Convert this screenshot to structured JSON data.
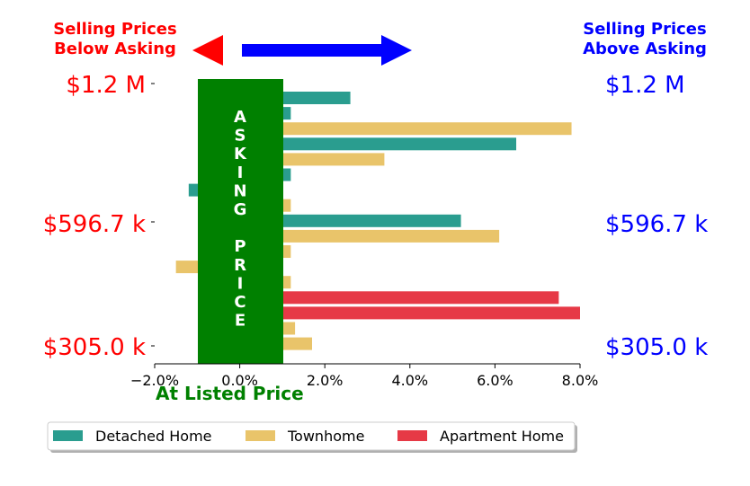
{
  "header": {
    "left_line1": "Selling Prices",
    "left_line2": "Below Asking",
    "right_line1": "Selling Prices",
    "right_line2": "Above Asking",
    "left_color": "#ff0000",
    "right_color": "#0000ff"
  },
  "banner": {
    "text": "ASKING PRICE",
    "color": "#008000"
  },
  "listed_label": {
    "text": "At Listed Price",
    "color": "#008000"
  },
  "chart_data": {
    "type": "bar",
    "orientation": "horizontal",
    "xlim": [
      -2.0,
      8.0
    ],
    "x_ticks": [
      -2.0,
      0.0,
      2.0,
      4.0,
      6.0,
      8.0
    ],
    "x_tick_labels": [
      "−2.0%",
      "0.0%",
      "2.0%",
      "4.0%",
      "6.0%",
      "8.0%"
    ],
    "y_labels_left": [
      "$1.2 M",
      "$596.7 k",
      "$305.0 k"
    ],
    "y_labels_right": [
      "$1.2 M",
      "$596.7 k",
      "$305.0 k"
    ],
    "series": [
      {
        "name": "Detached Home",
        "color": "#2a9d8f"
      },
      {
        "name": "Townhome",
        "color": "#e9c46a"
      },
      {
        "name": "Apartment Home",
        "color": "#e63946"
      }
    ],
    "bars": [
      {
        "series": 0,
        "value": 2.6
      },
      {
        "series": 0,
        "value": 1.2
      },
      {
        "series": 1,
        "value": 7.8
      },
      {
        "series": 0,
        "value": 6.5
      },
      {
        "series": 1,
        "value": 3.4
      },
      {
        "series": 0,
        "value": 1.2
      },
      {
        "series": 0,
        "value": -1.2
      },
      {
        "series": 1,
        "value": 1.2
      },
      {
        "series": 0,
        "value": 5.2
      },
      {
        "series": 1,
        "value": 6.1
      },
      {
        "series": 1,
        "value": 1.2
      },
      {
        "series": 1,
        "value": -1.5
      },
      {
        "series": 1,
        "value": 1.2
      },
      {
        "series": 2,
        "value": 7.5
      },
      {
        "series": 2,
        "value": 8.0
      },
      {
        "series": 1,
        "value": 1.3
      },
      {
        "series": 1,
        "value": 1.7
      }
    ],
    "legend": {
      "placement": "bottom"
    }
  }
}
